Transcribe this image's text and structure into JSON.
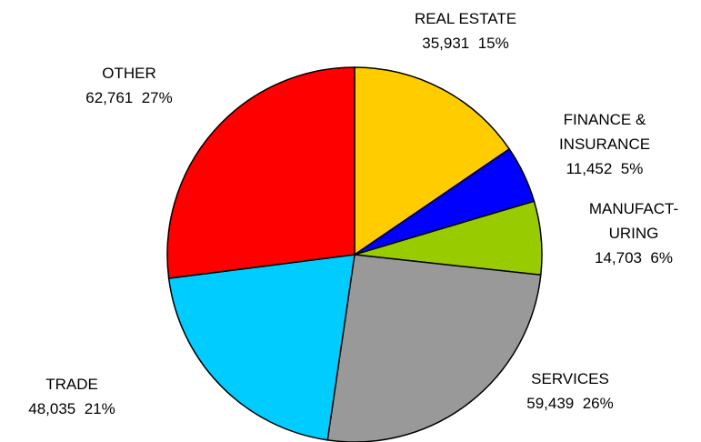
{
  "chart_data": {
    "type": "pie",
    "categories": [
      "REAL ESTATE",
      "FINANCE &\nINSURANCE",
      "MANUFACT-\nURING",
      "SERVICES",
      "TRADE",
      "OTHER"
    ],
    "values": [
      35931,
      11452,
      14703,
      59439,
      48035,
      62761
    ],
    "value_labels": [
      "35,931  15%",
      "11,452  5%",
      "14,703  6%",
      "59,439  26%",
      "48,035  21%",
      "62,761  27%"
    ],
    "colors": [
      "#ffcc00",
      "#0000ff",
      "#99cc00",
      "#999999",
      "#00ccff",
      "#ff0000"
    ]
  }
}
